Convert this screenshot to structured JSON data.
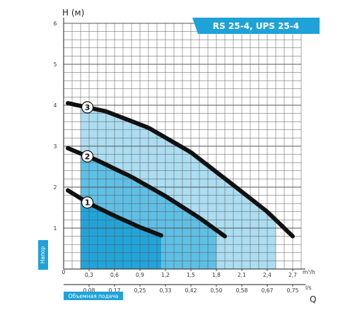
{
  "chart_data": {
    "type": "line",
    "title": "RS 25-4, UPS 25-4",
    "ylabel": "H (м)",
    "xlabel": "Q",
    "y_axis_tag": "Напор",
    "x_axis_tag": "Объемная подача",
    "x_unit_top": "m³/h",
    "x_unit_bottom": "l/s",
    "ylim": [
      0,
      6
    ],
    "xlim": [
      0,
      2.8
    ],
    "y_ticks": [
      "1",
      "2",
      "3",
      "4",
      "5",
      "6"
    ],
    "x_origin_label": "0",
    "x_ticks_top": [
      "0,3",
      "0,6",
      "0,9",
      "1,2",
      "1,5",
      "1,8",
      "2,1",
      "2,4",
      "2,7"
    ],
    "x_ticks_bottom": [
      "0,08",
      "0,17",
      "0,25",
      "0,33",
      "0,42",
      "0,50",
      "0,58",
      "0,67",
      "0,75"
    ],
    "grid": true,
    "series": [
      {
        "name": "1",
        "x": [
          0.05,
          0.3,
          0.6,
          0.9,
          1.15
        ],
        "y": [
          1.92,
          1.6,
          1.3,
          1.02,
          0.82
        ]
      },
      {
        "name": "2",
        "x": [
          0.05,
          0.4,
          0.8,
          1.2,
          1.6,
          1.9
        ],
        "y": [
          2.95,
          2.65,
          2.25,
          1.78,
          1.25,
          0.8
        ]
      },
      {
        "name": "3",
        "x": [
          0.05,
          0.5,
          1.0,
          1.5,
          2.0,
          2.4,
          2.7
        ],
        "y": [
          4.05,
          3.85,
          3.45,
          2.85,
          2.05,
          1.4,
          0.8
        ]
      }
    ],
    "shaded_ranges": [
      {
        "x": [
          0.2,
          1.15
        ],
        "color": "#1fa2d8"
      },
      {
        "x": [
          0.2,
          1.8
        ],
        "color": "#5bbde4"
      },
      {
        "x": [
          0.2,
          2.5
        ],
        "color": "#a8dbf0"
      }
    ]
  }
}
